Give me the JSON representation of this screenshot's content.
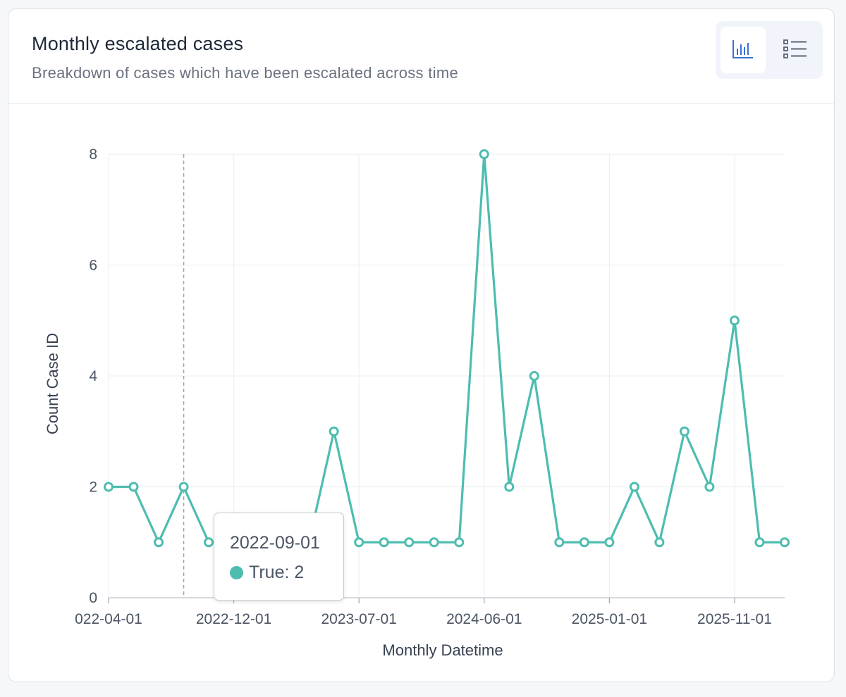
{
  "card": {
    "title": "Monthly escalated cases",
    "subtitle": "Breakdown of cases which have been escalated across time",
    "view_toggle": {
      "chart_icon": "bar-chart-icon",
      "list_icon": "list-icon",
      "selected": "chart"
    }
  },
  "colors": {
    "series": "#4dbdb0",
    "grid": "#eef0f3",
    "crosshair": "#a0a4aa"
  },
  "tooltip": {
    "date": "2022-09-01",
    "series_name": "True",
    "value": "2",
    "separator": ": "
  },
  "chart_data": {
    "type": "line",
    "xlabel": "Monthly Datetime",
    "ylabel": "Count Case ID",
    "ylim": [
      0,
      8
    ],
    "yticks": [
      0,
      2,
      4,
      6,
      8
    ],
    "xtick_labels": [
      "022-04-01",
      "2022-12-01",
      "2023-07-01",
      "2024-06-01",
      "2025-01-01",
      "2025-11-01"
    ],
    "grid": true,
    "series": [
      {
        "name": "True",
        "values": [
          2,
          2,
          1,
          2,
          1,
          1,
          1,
          1,
          1,
          3,
          1,
          1,
          1,
          1,
          1,
          8,
          2,
          4,
          1,
          1,
          1,
          2,
          1,
          3,
          2,
          5,
          1,
          1
        ]
      }
    ]
  }
}
